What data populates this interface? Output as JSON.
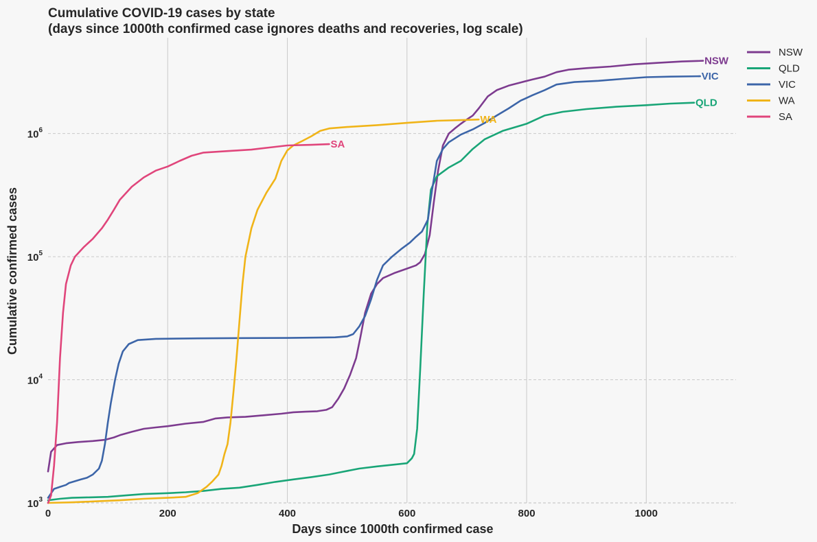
{
  "chart_data": {
    "type": "line",
    "title": "Cumulative COVID-19 cases by state",
    "subtitle": "(days since 1000th confirmed case ignores deaths and recoveries, log scale)",
    "xlabel": "Days since 1000th confirmed case",
    "ylabel": "Cumulative confirmed cases",
    "xlim": [
      0,
      1150
    ],
    "ylim": [
      1000,
      6000000
    ],
    "yscale": "log",
    "x_ticks": [
      0,
      200,
      400,
      600,
      800,
      1000
    ],
    "y_ticks": [
      {
        "value": 1000,
        "base": "10",
        "exp": "3"
      },
      {
        "value": 10000,
        "base": "10",
        "exp": "4"
      },
      {
        "value": 100000,
        "base": "10",
        "exp": "5"
      },
      {
        "value": 1000000,
        "base": "10",
        "exp": "6"
      }
    ],
    "grid": {
      "x": "solid",
      "y": "dashed"
    },
    "legend_position": "top-right-outside",
    "series": [
      {
        "name": "NSW",
        "color": "#7d3b8f",
        "points": [
          [
            0,
            1800
          ],
          [
            5,
            2600
          ],
          [
            15,
            2950
          ],
          [
            30,
            3050
          ],
          [
            50,
            3120
          ],
          [
            75,
            3180
          ],
          [
            95,
            3250
          ],
          [
            110,
            3400
          ],
          [
            120,
            3550
          ],
          [
            140,
            3780
          ],
          [
            160,
            4000
          ],
          [
            180,
            4100
          ],
          [
            200,
            4200
          ],
          [
            230,
            4400
          ],
          [
            260,
            4550
          ],
          [
            280,
            4850
          ],
          [
            300,
            4950
          ],
          [
            330,
            5000
          ],
          [
            360,
            5150
          ],
          [
            390,
            5300
          ],
          [
            410,
            5450
          ],
          [
            430,
            5500
          ],
          [
            450,
            5550
          ],
          [
            465,
            5700
          ],
          [
            475,
            6000
          ],
          [
            485,
            7000
          ],
          [
            495,
            8500
          ],
          [
            505,
            11000
          ],
          [
            515,
            15000
          ],
          [
            522,
            22000
          ],
          [
            530,
            35000
          ],
          [
            540,
            50000
          ],
          [
            550,
            60000
          ],
          [
            560,
            67000
          ],
          [
            580,
            74000
          ],
          [
            600,
            80000
          ],
          [
            615,
            85000
          ],
          [
            622,
            90000
          ],
          [
            630,
            105000
          ],
          [
            638,
            150000
          ],
          [
            645,
            280000
          ],
          [
            652,
            500000
          ],
          [
            660,
            800000
          ],
          [
            670,
            1000000
          ],
          [
            680,
            1100000
          ],
          [
            690,
            1200000
          ],
          [
            700,
            1300000
          ],
          [
            710,
            1400000
          ],
          [
            720,
            1600000
          ],
          [
            735,
            2000000
          ],
          [
            750,
            2250000
          ],
          [
            770,
            2450000
          ],
          [
            790,
            2600000
          ],
          [
            810,
            2750000
          ],
          [
            830,
            2900000
          ],
          [
            850,
            3150000
          ],
          [
            870,
            3300000
          ],
          [
            900,
            3400000
          ],
          [
            940,
            3500000
          ],
          [
            980,
            3650000
          ],
          [
            1020,
            3750000
          ],
          [
            1060,
            3850000
          ],
          [
            1095,
            3900000
          ]
        ]
      },
      {
        "name": "QLD",
        "color": "#19a577",
        "points": [
          [
            0,
            1050
          ],
          [
            20,
            1080
          ],
          [
            40,
            1100
          ],
          [
            70,
            1110
          ],
          [
            100,
            1120
          ],
          [
            130,
            1150
          ],
          [
            160,
            1180
          ],
          [
            200,
            1200
          ],
          [
            230,
            1220
          ],
          [
            260,
            1250
          ],
          [
            290,
            1300
          ],
          [
            320,
            1330
          ],
          [
            350,
            1400
          ],
          [
            380,
            1480
          ],
          [
            410,
            1550
          ],
          [
            440,
            1620
          ],
          [
            470,
            1700
          ],
          [
            490,
            1780
          ],
          [
            520,
            1900
          ],
          [
            550,
            1980
          ],
          [
            580,
            2050
          ],
          [
            600,
            2100
          ],
          [
            608,
            2300
          ],
          [
            612,
            2500
          ],
          [
            617,
            4000
          ],
          [
            622,
            12000
          ],
          [
            628,
            50000
          ],
          [
            634,
            180000
          ],
          [
            640,
            350000
          ],
          [
            650,
            450000
          ],
          [
            670,
            530000
          ],
          [
            690,
            600000
          ],
          [
            710,
            750000
          ],
          [
            730,
            900000
          ],
          [
            760,
            1050000
          ],
          [
            800,
            1200000
          ],
          [
            830,
            1400000
          ],
          [
            860,
            1500000
          ],
          [
            900,
            1580000
          ],
          [
            950,
            1650000
          ],
          [
            1000,
            1700000
          ],
          [
            1040,
            1750000
          ],
          [
            1080,
            1780000
          ]
        ]
      },
      {
        "name": "VIC",
        "color": "#3c65a8",
        "points": [
          [
            0,
            1100
          ],
          [
            10,
            1300
          ],
          [
            20,
            1350
          ],
          [
            30,
            1400
          ],
          [
            35,
            1450
          ],
          [
            45,
            1500
          ],
          [
            55,
            1550
          ],
          [
            65,
            1600
          ],
          [
            75,
            1700
          ],
          [
            85,
            1900
          ],
          [
            90,
            2200
          ],
          [
            95,
            3000
          ],
          [
            100,
            4500
          ],
          [
            105,
            6500
          ],
          [
            112,
            10000
          ],
          [
            118,
            13500
          ],
          [
            125,
            17000
          ],
          [
            135,
            19500
          ],
          [
            150,
            21000
          ],
          [
            180,
            21500
          ],
          [
            250,
            21700
          ],
          [
            320,
            21800
          ],
          [
            400,
            21850
          ],
          [
            450,
            22000
          ],
          [
            480,
            22100
          ],
          [
            500,
            22500
          ],
          [
            510,
            23500
          ],
          [
            520,
            27000
          ],
          [
            530,
            33000
          ],
          [
            540,
            45000
          ],
          [
            550,
            65000
          ],
          [
            560,
            85000
          ],
          [
            575,
            100000
          ],
          [
            590,
            115000
          ],
          [
            605,
            130000
          ],
          [
            615,
            145000
          ],
          [
            625,
            160000
          ],
          [
            635,
            200000
          ],
          [
            642,
            350000
          ],
          [
            650,
            600000
          ],
          [
            660,
            750000
          ],
          [
            670,
            850000
          ],
          [
            690,
            980000
          ],
          [
            710,
            1080000
          ],
          [
            730,
            1220000
          ],
          [
            750,
            1400000
          ],
          [
            770,
            1600000
          ],
          [
            790,
            1850000
          ],
          [
            810,
            2050000
          ],
          [
            830,
            2250000
          ],
          [
            850,
            2500000
          ],
          [
            880,
            2620000
          ],
          [
            920,
            2680000
          ],
          [
            960,
            2780000
          ],
          [
            1000,
            2870000
          ],
          [
            1040,
            2900000
          ],
          [
            1090,
            2920000
          ]
        ]
      },
      {
        "name": "WA",
        "color": "#f0b418",
        "points": [
          [
            0,
            1000
          ],
          [
            40,
            1010
          ],
          [
            80,
            1030
          ],
          [
            120,
            1050
          ],
          [
            160,
            1080
          ],
          [
            200,
            1100
          ],
          [
            230,
            1120
          ],
          [
            250,
            1200
          ],
          [
            265,
            1350
          ],
          [
            275,
            1500
          ],
          [
            285,
            1700
          ],
          [
            290,
            2000
          ],
          [
            295,
            2500
          ],
          [
            300,
            3000
          ],
          [
            305,
            4500
          ],
          [
            310,
            8000
          ],
          [
            315,
            15000
          ],
          [
            320,
            30000
          ],
          [
            325,
            60000
          ],
          [
            330,
            100000
          ],
          [
            340,
            170000
          ],
          [
            350,
            240000
          ],
          [
            365,
            330000
          ],
          [
            380,
            430000
          ],
          [
            390,
            600000
          ],
          [
            400,
            730000
          ],
          [
            410,
            800000
          ],
          [
            425,
            870000
          ],
          [
            440,
            950000
          ],
          [
            455,
            1050000
          ],
          [
            470,
            1100000
          ],
          [
            500,
            1130000
          ],
          [
            550,
            1170000
          ],
          [
            600,
            1220000
          ],
          [
            650,
            1270000
          ],
          [
            700,
            1290000
          ],
          [
            720,
            1300000
          ]
        ]
      },
      {
        "name": "SA",
        "color": "#e0457b",
        "points": [
          [
            0,
            1000
          ],
          [
            5,
            1150
          ],
          [
            10,
            2000
          ],
          [
            15,
            4500
          ],
          [
            20,
            15000
          ],
          [
            25,
            35000
          ],
          [
            30,
            60000
          ],
          [
            38,
            85000
          ],
          [
            45,
            100000
          ],
          [
            60,
            120000
          ],
          [
            75,
            140000
          ],
          [
            90,
            170000
          ],
          [
            100,
            200000
          ],
          [
            110,
            240000
          ],
          [
            120,
            290000
          ],
          [
            140,
            370000
          ],
          [
            160,
            440000
          ],
          [
            180,
            500000
          ],
          [
            200,
            540000
          ],
          [
            220,
            600000
          ],
          [
            240,
            660000
          ],
          [
            260,
            700000
          ],
          [
            300,
            720000
          ],
          [
            340,
            740000
          ],
          [
            370,
            770000
          ],
          [
            400,
            800000
          ],
          [
            440,
            810000
          ],
          [
            470,
            820000
          ]
        ]
      }
    ]
  }
}
